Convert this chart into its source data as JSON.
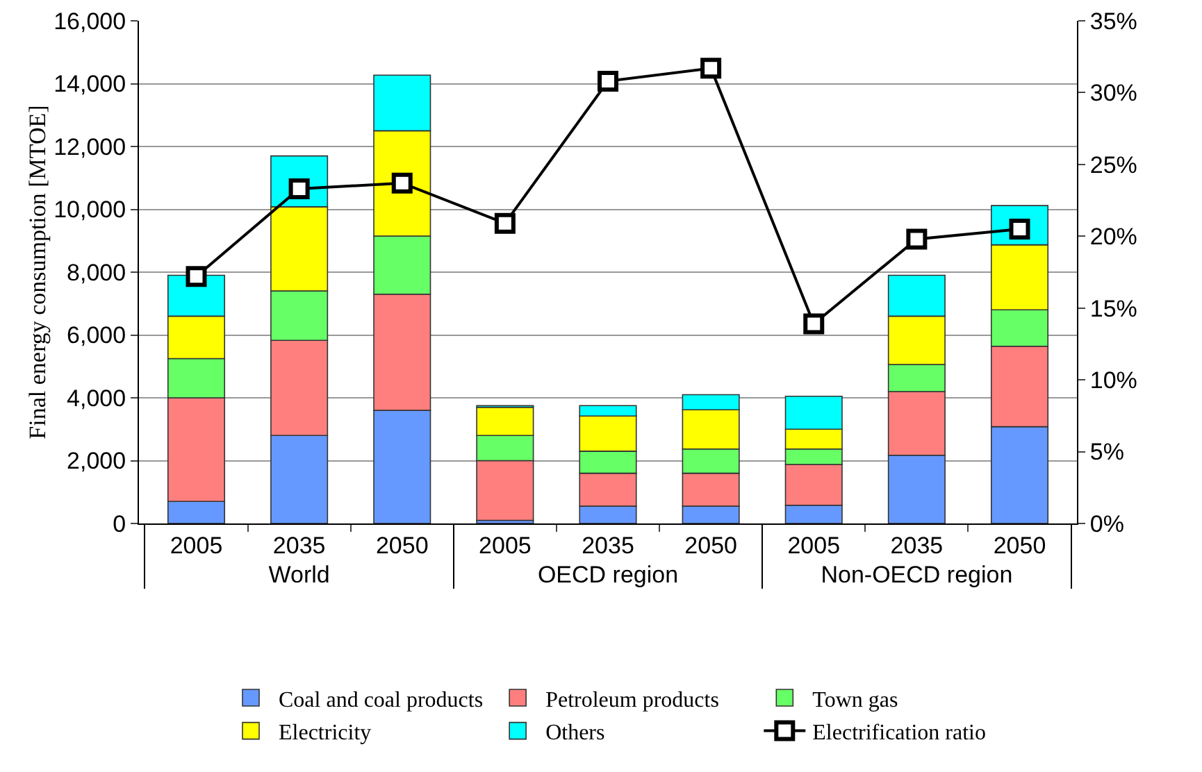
{
  "chart_data": {
    "type": "bar",
    "stacked": true,
    "ylabel": "Final energy consumption [MTOE]",
    "categories": [
      "2005",
      "2035",
      "2050",
      "2005",
      "2035",
      "2050",
      "2005",
      "2035",
      "2050"
    ],
    "annotations": [
      "World",
      "OECD region",
      "Non-OECD region"
    ],
    "series": [
      {
        "name": "Coal and coal products",
        "color": "#6699ff",
        "values": [
          700,
          2800,
          3600,
          100,
          550,
          550,
          580,
          2170,
          3080
        ]
      },
      {
        "name": "Petroleum products",
        "color": "#ff7f7f",
        "values": [
          3300,
          3030,
          3700,
          1900,
          1050,
          1050,
          1300,
          2030,
          2560
        ]
      },
      {
        "name": "Town gas",
        "color": "#66ff66",
        "values": [
          1250,
          1570,
          1850,
          800,
          700,
          770,
          490,
          860,
          1160
        ]
      },
      {
        "name": "Electricity",
        "color": "#ffff00",
        "values": [
          1350,
          2680,
          3350,
          900,
          1120,
          1250,
          630,
          1540,
          2070
        ]
      },
      {
        "name": "Others",
        "color": "#00ffff",
        "values": [
          1300,
          1620,
          1770,
          50,
          330,
          480,
          1050,
          1300,
          1250
        ]
      },
      {
        "name": "Electrification ratio",
        "type": "line",
        "axis": "y2",
        "color": "#000000",
        "values": [
          17.2,
          23.3,
          23.7,
          20.9,
          30.8,
          31.7,
          13.9,
          19.8,
          20.5
        ]
      }
    ],
    "ylim": [
      0,
      16000
    ],
    "yticks": [
      {
        "value": 0,
        "label": "0"
      },
      {
        "value": 2000,
        "label": "2,000"
      },
      {
        "value": 4000,
        "label": "4,000"
      },
      {
        "value": 6000,
        "label": "6,000"
      },
      {
        "value": 8000,
        "label": "8,000"
      },
      {
        "value": 10000,
        "label": "10,000"
      },
      {
        "value": 12000,
        "label": "12,000"
      },
      {
        "value": 14000,
        "label": "14,000"
      },
      {
        "value": 16000,
        "label": "16,000"
      }
    ],
    "y2lim": [
      0,
      35
    ],
    "y2ticks": [
      {
        "value": 0,
        "label": "0%"
      },
      {
        "value": 5,
        "label": "5%"
      },
      {
        "value": 10,
        "label": "10%"
      },
      {
        "value": 15,
        "label": "15%"
      },
      {
        "value": 20,
        "label": "20%"
      },
      {
        "value": 25,
        "label": "25%"
      },
      {
        "value": 30,
        "label": "30%"
      },
      {
        "value": 35,
        "label": "35%"
      }
    ],
    "grid": "y",
    "legend": "bottom",
    "marker": "square",
    "line_style": "solid"
  }
}
